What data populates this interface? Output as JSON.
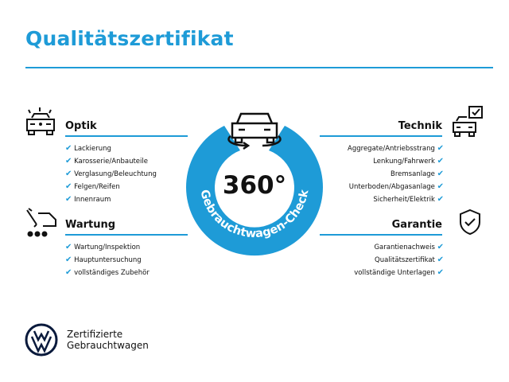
{
  "title": "Qualitätszertifikat",
  "center": {
    "number": "360°",
    "arc_text": "Gebrauchtwagen-Check"
  },
  "sections": {
    "optik": {
      "heading": "Optik",
      "items": [
        "Lackierung",
        "Karosserie/Anbauteile",
        "Verglasung/Beleuchtung",
        "Felgen/Reifen",
        "Innenraum"
      ]
    },
    "wartung": {
      "heading": "Wartung",
      "items": [
        "Wartung/Inspektion",
        "Hauptuntersuchung",
        "vollständiges Zubehör"
      ]
    },
    "technik": {
      "heading": "Technik",
      "items": [
        "Aggregate/Antriebsstrang",
        "Lenkung/Fahrwerk",
        "Bremsanlage",
        "Unterboden/Abgasanlage",
        "Sicherheit/Elektrik"
      ]
    },
    "garantie": {
      "heading": "Garantie",
      "items": [
        "Garantienachweis",
        "Qualitätszertifikat",
        "vollständige Unterlagen"
      ]
    }
  },
  "check": "✔",
  "brand": {
    "line1": "Zertifizierte",
    "line2": "Gebrauchtwagen"
  },
  "colors": {
    "accent": "#1e9bd7"
  }
}
